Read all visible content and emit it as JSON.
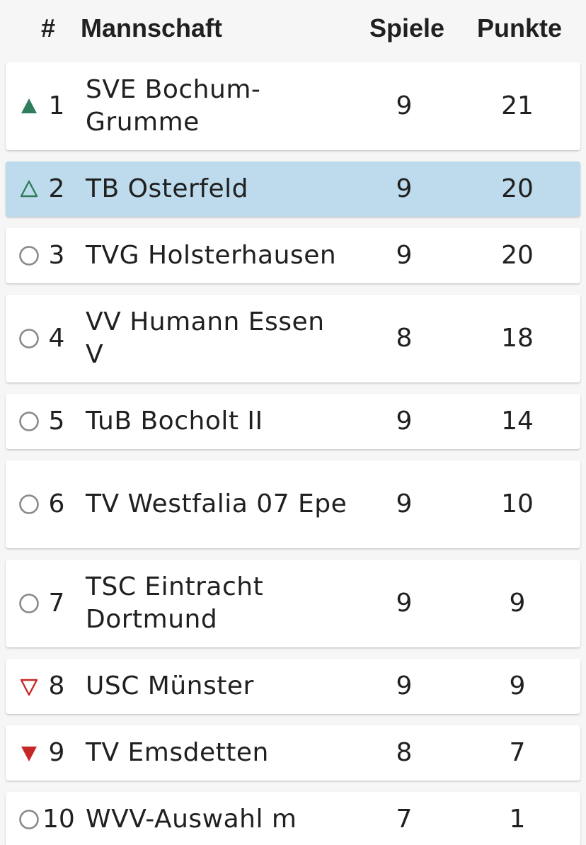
{
  "header": {
    "num": "#",
    "team": "Mannschaft",
    "games": "Spiele",
    "points": "Punkte"
  },
  "colors": {
    "up": "#2e7d5b",
    "down": "#c62828",
    "neutral": "#8a8a8a",
    "highlight": "#bddbec"
  },
  "rows": [
    {
      "rank": "1",
      "team": "SVE Bochum-Grumme",
      "games": "9",
      "points": "21",
      "trend": "up-filled-triangle-icon",
      "tall": true,
      "highlight": false
    },
    {
      "rank": "2",
      "team": "TB Osterfeld",
      "games": "9",
      "points": "20",
      "trend": "up-outline-triangle-icon",
      "tall": false,
      "highlight": true
    },
    {
      "rank": "3",
      "team": "TVG Holsterhausen",
      "games": "9",
      "points": "20",
      "trend": "circle-icon",
      "tall": false,
      "highlight": false
    },
    {
      "rank": "4",
      "team": "VV Humann Essen V",
      "games": "8",
      "points": "18",
      "trend": "circle-icon",
      "tall": true,
      "highlight": false
    },
    {
      "rank": "5",
      "team": "TuB Bocholt II",
      "games": "9",
      "points": "14",
      "trend": "circle-icon",
      "tall": false,
      "highlight": false
    },
    {
      "rank": "6",
      "team": "TV Westfalia 07 Epe",
      "games": "9",
      "points": "10",
      "trend": "circle-icon",
      "tall": true,
      "highlight": false
    },
    {
      "rank": "7",
      "team": "TSC Eintracht Dortmund",
      "games": "9",
      "points": "9",
      "trend": "circle-icon",
      "tall": true,
      "highlight": false
    },
    {
      "rank": "8",
      "team": "USC Münster",
      "games": "9",
      "points": "9",
      "trend": "down-outline-triangle-icon",
      "tall": false,
      "highlight": false
    },
    {
      "rank": "9",
      "team": "TV Emsdetten",
      "games": "8",
      "points": "7",
      "trend": "down-filled-triangle-icon",
      "tall": false,
      "highlight": false
    },
    {
      "rank": "10",
      "team": "WVV-Auswahl m",
      "games": "7",
      "points": "1",
      "trend": "circle-icon",
      "tall": false,
      "highlight": false
    }
  ]
}
